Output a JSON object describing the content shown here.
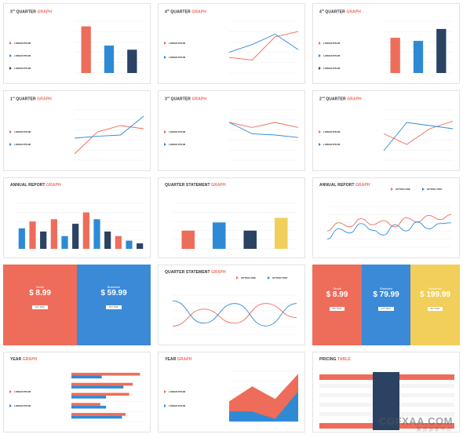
{
  "titles": {
    "s1": [
      "3",
      "rd",
      " QUARTER ",
      "GRAPH"
    ],
    "s2": [
      "4",
      "th",
      " QUARTER ",
      "GRAPH"
    ],
    "s3": [
      "4",
      "th",
      " QUARTER ",
      "GRAPH"
    ],
    "s4": [
      "1",
      "st",
      " QUARTER ",
      "GRAPH"
    ],
    "s5": [
      "3",
      "rd",
      " QUARTER ",
      "GRAPH"
    ],
    "s6": [
      "2",
      "nd",
      " QUARTER ",
      "GRAPH"
    ],
    "s7": [
      "ANNUAL REPORT ",
      "GRAPH"
    ],
    "s8": [
      "QUARTER STATEMENT ",
      "GRAPH"
    ],
    "s9": [
      "ANNUAL REPORT ",
      "GRAPH"
    ],
    "s11": [
      "QUARTER STATEMENT ",
      "GRAPH"
    ],
    "s13": [
      "YEAR ",
      "GRAPH"
    ],
    "s14": [
      "YEAR ",
      "GRAPH"
    ],
    "s15": [
      "PRICING ",
      "TABLE"
    ]
  },
  "legend": {
    "item": "LOREM IPSUM",
    "option_one": "OPTION ONE",
    "option_two": "OPTION TWO"
  },
  "pricing_two": {
    "small_label": "Small",
    "small_price": "$ 8.99",
    "business_label": "Business",
    "business_price": "$ 59.99",
    "button": "BUY NOW"
  },
  "pricing_three": {
    "small_label": "Small",
    "small_price": "$ 8.99",
    "standard_label": "Standard",
    "standard_price": "$ 79.99",
    "business_label": "Business",
    "business_price": "$ 199.99",
    "button": "BUY NOW"
  },
  "watermark": {
    "logo": "CGFXAA.COM",
    "tagline": "聚 资 源  享 平 台"
  },
  "colors": {
    "coral": "#ee6c5a",
    "blue": "#2f8ad6",
    "navy": "#2b4263",
    "yellow": "#f1cf5a",
    "grid": "#eeeeee"
  },
  "chart_data": [
    {
      "id": "s1",
      "type": "bar",
      "categories": [
        "",
        "",
        ""
      ],
      "values": [
        90,
        53,
        45
      ],
      "colors": [
        "#ee6c5a",
        "#2f8ad6",
        "#2b4263"
      ],
      "ylim": [
        0,
        100
      ]
    },
    {
      "id": "s2",
      "type": "line",
      "x": [
        1,
        2,
        3,
        4
      ],
      "series": [
        {
          "values": [
            30,
            25,
            70,
            80
          ],
          "color": "#ee6c5a"
        },
        {
          "values": [
            40,
            55,
            75,
            45
          ],
          "color": "#2f8ad6"
        }
      ],
      "ylim": [
        0,
        100
      ]
    },
    {
      "id": "s3",
      "type": "bar",
      "categories": [
        "",
        "",
        ""
      ],
      "values": [
        68,
        62,
        85
      ],
      "colors": [
        "#ee6c5a",
        "#2f8ad6",
        "#2b4263"
      ],
      "ylim": [
        0,
        100
      ]
    },
    {
      "id": "s4",
      "type": "line",
      "x": [
        1,
        2,
        3,
        4
      ],
      "series": [
        {
          "values": [
            10,
            45,
            55,
            50
          ],
          "color": "#ee6c5a"
        },
        {
          "values": [
            35,
            38,
            40,
            70
          ],
          "color": "#2f8ad6"
        }
      ],
      "ylim": [
        0,
        80
      ]
    },
    {
      "id": "s5",
      "type": "line",
      "x": [
        1,
        2,
        3,
        4
      ],
      "series": [
        {
          "values": [
            60,
            52,
            60,
            52
          ],
          "color": "#ee6c5a"
        },
        {
          "values": [
            60,
            42,
            40,
            36
          ],
          "color": "#2f8ad6"
        }
      ],
      "ylim": [
        0,
        80
      ]
    },
    {
      "id": "s6",
      "type": "line",
      "x": [
        1,
        2,
        3,
        4
      ],
      "series": [
        {
          "values": [
            42,
            25,
            50,
            62
          ],
          "color": "#ee6c5a"
        },
        {
          "values": [
            15,
            60,
            55,
            50
          ],
          "color": "#2f8ad6"
        }
      ],
      "ylim": [
        0,
        80
      ]
    },
    {
      "id": "s7",
      "type": "bar",
      "categories": [
        "",
        "",
        "",
        "",
        "",
        "",
        "",
        "",
        "",
        "",
        "",
        ""
      ],
      "values": [
        45,
        60,
        38,
        65,
        28,
        55,
        80,
        65,
        38,
        28,
        18,
        12
      ],
      "colors": [
        "#2f8ad6",
        "#ee6c5a",
        "#2b4263",
        "#ee6c5a",
        "#2f8ad6",
        "#2b4263",
        "#ee6c5a",
        "#2f8ad6",
        "#2b4263",
        "#ee6c5a",
        "#2f8ad6",
        "#2b4263"
      ],
      "ylim": [
        0,
        100
      ]
    },
    {
      "id": "s8",
      "type": "bar",
      "categories": [
        "",
        "",
        "",
        ""
      ],
      "values": [
        40,
        58,
        40,
        68
      ],
      "colors": [
        "#ee6c5a",
        "#2f8ad6",
        "#2b4263",
        "#f1cf5a"
      ],
      "ylim": [
        0,
        100
      ]
    },
    {
      "id": "s9",
      "type": "line",
      "x": [
        1,
        2,
        3,
        4,
        5,
        6,
        7,
        8,
        9,
        10,
        11,
        12
      ],
      "series": [
        {
          "values": [
            40,
            60,
            50,
            70,
            55,
            65,
            50,
            72,
            62,
            78,
            68,
            80
          ],
          "color": "#ee6c5a"
        },
        {
          "values": [
            20,
            45,
            35,
            58,
            42,
            30,
            55,
            40,
            62,
            45,
            58,
            60
          ],
          "color": "#2f8ad6"
        }
      ],
      "ylim": [
        0,
        100
      ]
    },
    {
      "id": "s11",
      "type": "line",
      "x": [
        1,
        2,
        3,
        4,
        5
      ],
      "series": [
        {
          "values": [
            15,
            45,
            20,
            55,
            30
          ],
          "color": "#ee6c5a"
        },
        {
          "values": [
            60,
            20,
            55,
            15,
            55
          ],
          "color": "#2f8ad6"
        }
      ],
      "ylim": [
        0,
        70
      ]
    },
    {
      "id": "s13",
      "type": "bar",
      "orientation": "horizontal",
      "categories": [
        "",
        "",
        "",
        "",
        ""
      ],
      "series": [
        {
          "values": [
            95,
            85,
            80,
            40,
            75
          ],
          "color": "#ee6c5a"
        },
        {
          "values": [
            42,
            72,
            48,
            48,
            70
          ],
          "color": "#2f8ad6"
        }
      ],
      "ylim": [
        0,
        100
      ]
    },
    {
      "id": "s14",
      "type": "area",
      "x": [
        1,
        2,
        3,
        4
      ],
      "series": [
        {
          "values": [
            40,
            70,
            45,
            95
          ],
          "color": "#ee6c5a"
        },
        {
          "values": [
            20,
            20,
            5,
            60
          ],
          "color": "#2f8ad6"
        }
      ],
      "ylim": [
        0,
        100
      ]
    }
  ]
}
